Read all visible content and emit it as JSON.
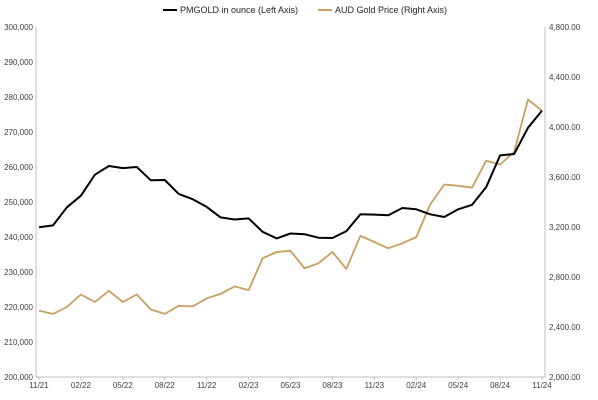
{
  "chart_data": {
    "type": "line",
    "title": "",
    "legend_position": "top",
    "grid": false,
    "x": [
      "11/21",
      "12/21",
      "01/22",
      "02/22",
      "03/22",
      "04/22",
      "05/22",
      "06/22",
      "07/22",
      "08/22",
      "09/22",
      "10/22",
      "11/22",
      "12/22",
      "01/23",
      "02/23",
      "03/23",
      "04/23",
      "05/23",
      "06/23",
      "07/23",
      "08/23",
      "09/23",
      "10/23",
      "11/23",
      "12/23",
      "01/24",
      "02/24",
      "03/24",
      "04/24",
      "05/24",
      "06/24",
      "07/24",
      "08/24",
      "09/24",
      "10/24",
      "11/24"
    ],
    "x_tick_labels": [
      "11/21",
      "02/22",
      "05/22",
      "08/22",
      "11/22",
      "02/23",
      "05/23",
      "08/23",
      "11/23",
      "02/24",
      "05/24",
      "08/24",
      "11/24"
    ],
    "left_axis": {
      "ylim": [
        200000,
        300000
      ],
      "ticks": [
        "200,000",
        "210,000",
        "220,000",
        "230,000",
        "240,000",
        "250,000",
        "260,000",
        "270,000",
        "280,000",
        "290,000",
        "300,000"
      ]
    },
    "right_axis": {
      "ylim": [
        2000,
        4800
      ],
      "ticks": [
        "2,000.00",
        "2,400.00",
        "2,800.00",
        "3,200.00",
        "3,600.00",
        "4,000.00",
        "4,400.00",
        "4,800.00"
      ]
    },
    "series": [
      {
        "name": "PMGOLD in ounce (Left Axis)",
        "axis": "left",
        "color": "#000000",
        "values": [
          242800,
          243300,
          248500,
          251800,
          257800,
          260300,
          259700,
          260000,
          256200,
          256300,
          252300,
          250800,
          248600,
          245600,
          245000,
          245300,
          241500,
          239600,
          241000,
          240800,
          239800,
          239700,
          241700,
          246500,
          246400,
          246200,
          248300,
          247900,
          246500,
          245700,
          247900,
          249200,
          254200,
          263300,
          263700,
          271200,
          276100
        ]
      },
      {
        "name": "AUD Gold Price (Right Axis)",
        "axis": "right",
        "color": "#c8a060",
        "values": [
          2530,
          2505,
          2560,
          2660,
          2600,
          2690,
          2600,
          2660,
          2540,
          2505,
          2570,
          2565,
          2630,
          2665,
          2725,
          2695,
          2950,
          3000,
          3010,
          2870,
          2910,
          3000,
          2865,
          3130,
          3080,
          3030,
          3070,
          3120,
          3380,
          3540,
          3530,
          3515,
          3730,
          3700,
          3800,
          4220,
          4130
        ]
      }
    ]
  }
}
